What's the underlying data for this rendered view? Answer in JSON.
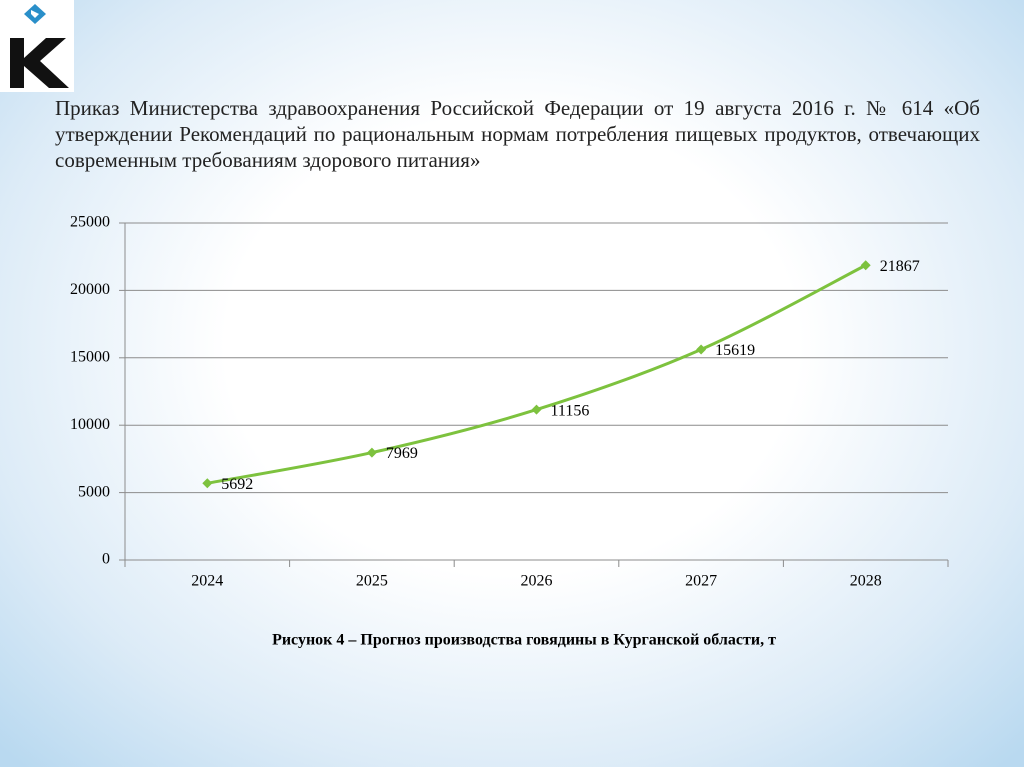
{
  "header": {
    "text": "Приказ Министерства здравоохранения Российской Федерации от 19 августа 2016 г. № 614 «Об утверждении Рекомендаций по рациональным нормам потребления пищевых продуктов, отвечающих современным требованиям здорового питания»"
  },
  "chart_data": {
    "type": "line",
    "caption": "Рисунок  4  – Прогноз производства говядины в Курганской области, т",
    "categories": [
      "2024",
      "2025",
      "2026",
      "2027",
      "2028"
    ],
    "values": [
      5692,
      7969,
      11156,
      15619,
      21867
    ],
    "color": "#7dc23e",
    "ylim": [
      0,
      25000
    ],
    "yticks": [
      0,
      5000,
      10000,
      15000,
      20000,
      25000
    ],
    "grid": true
  }
}
